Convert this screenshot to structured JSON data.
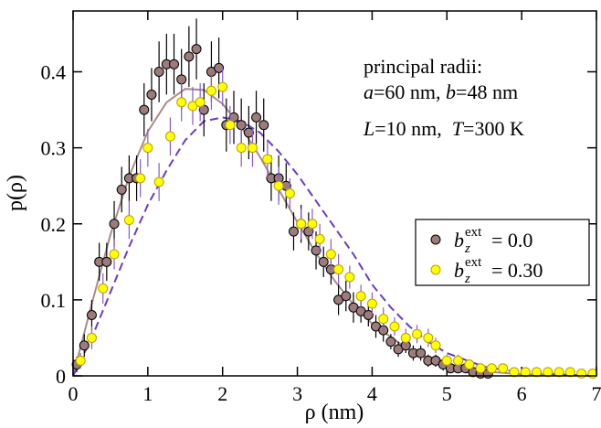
{
  "chart_data": {
    "type": "scatter",
    "x_label": "ρ (nm)",
    "y_label": "p(ρ)",
    "xlim": [
      0,
      7
    ],
    "ylim": [
      0,
      0.48
    ],
    "xticks": [
      0,
      1,
      2,
      3,
      4,
      5,
      6,
      7
    ],
    "yticks": [
      0,
      0.1,
      0.2,
      0.3,
      0.4
    ],
    "annotations": [
      [
        {
          "text": "principal radii:"
        }
      ],
      [
        {
          "text": "a",
          "italic": true
        },
        {
          "text": "=60 nm, "
        },
        {
          "text": "b",
          "italic": true
        },
        {
          "text": "=48 nm"
        }
      ],
      [
        {
          "text": "L",
          "italic": true
        },
        {
          "text": "=10 nm,  "
        },
        {
          "text": "T",
          "italic": true
        },
        {
          "text": "=300 K"
        }
      ]
    ],
    "series": [
      {
        "name": {
          "base": "b",
          "sub": "z",
          "sup": "ext",
          "rest": "= 0.0"
        },
        "color": "#9c7b7b",
        "edge": "#000000",
        "error_color": "#000000",
        "x": [
          0.05,
          0.15,
          0.25,
          0.35,
          0.45,
          0.55,
          0.65,
          0.75,
          0.85,
          0.95,
          1.05,
          1.15,
          1.25,
          1.35,
          1.45,
          1.55,
          1.65,
          1.75,
          1.85,
          1.95,
          2.05,
          2.15,
          2.25,
          2.35,
          2.45,
          2.55,
          2.65,
          2.75,
          2.85,
          2.95,
          3.05,
          3.15,
          3.25,
          3.35,
          3.45,
          3.55,
          3.65,
          3.75,
          3.85,
          3.95,
          4.05,
          4.15,
          4.25,
          4.35,
          4.45,
          4.55,
          4.65,
          4.75,
          4.85,
          4.95,
          5.05,
          5.15,
          5.25,
          5.35,
          5.45,
          5.55
        ],
        "values": [
          0.015,
          0.04,
          0.08,
          0.15,
          0.15,
          0.2,
          0.245,
          0.26,
          0.26,
          0.35,
          0.37,
          0.4,
          0.41,
          0.41,
          0.39,
          0.42,
          0.43,
          0.35,
          0.4,
          0.405,
          0.33,
          0.34,
          0.33,
          0.32,
          0.34,
          0.33,
          0.26,
          0.26,
          0.25,
          0.19,
          0.2,
          0.19,
          0.165,
          0.15,
          0.14,
          0.1,
          0.105,
          0.09,
          0.085,
          0.08,
          0.065,
          0.06,
          0.045,
          0.035,
          0.04,
          0.03,
          0.03,
          0.02,
          0.02,
          0.015,
          0.01,
          0.01,
          0.01,
          0.005,
          0.003,
          0.003
        ],
        "errors": [
          0.01,
          0.015,
          0.02,
          0.025,
          0.025,
          0.03,
          0.03,
          0.03,
          0.03,
          0.035,
          0.035,
          0.04,
          0.04,
          0.04,
          0.04,
          0.04,
          0.04,
          0.035,
          0.04,
          0.04,
          0.035,
          0.035,
          0.035,
          0.035,
          0.035,
          0.035,
          0.03,
          0.03,
          0.03,
          0.025,
          0.025,
          0.025,
          0.025,
          0.02,
          0.02,
          0.02,
          0.02,
          0.02,
          0.015,
          0.015,
          0.015,
          0.015,
          0.01,
          0.01,
          0.01,
          0.01,
          0.01,
          0.008,
          0.008,
          0.008,
          0.005,
          0.005,
          0.005,
          0.004,
          0.003,
          0.003
        ]
      },
      {
        "name": {
          "base": "b",
          "sub": "z",
          "sup": "ext",
          "rest": "= 0.30"
        },
        "color": "#ffff00",
        "edge": "#b8a000",
        "error_color": "#8a5ad0",
        "x": [
          0.1,
          0.25,
          0.4,
          0.55,
          0.75,
          0.9,
          1.0,
          1.15,
          1.3,
          1.45,
          1.6,
          1.7,
          1.85,
          2.0,
          2.1,
          2.25,
          2.4,
          2.6,
          2.75,
          2.9,
          3.05,
          3.2,
          3.3,
          3.45,
          3.55,
          3.7,
          3.85,
          4.0,
          4.15,
          4.3,
          4.45,
          4.6,
          4.75,
          4.85,
          5.0,
          5.15,
          5.3,
          5.45,
          5.6,
          5.75,
          5.9,
          6.05,
          6.2,
          6.35,
          6.5,
          6.65,
          6.8,
          6.95
        ],
        "values": [
          0.02,
          0.05,
          0.115,
          0.16,
          0.205,
          0.26,
          0.3,
          0.255,
          0.315,
          0.36,
          0.355,
          0.36,
          0.375,
          0.38,
          0.33,
          0.3,
          0.3,
          0.285,
          0.25,
          0.24,
          0.2,
          0.2,
          0.18,
          0.16,
          0.14,
          0.13,
          0.105,
          0.095,
          0.075,
          0.065,
          0.05,
          0.055,
          0.05,
          0.04,
          0.02,
          0.02,
          0.015,
          0.01,
          0.01,
          0.01,
          0.005,
          0.005,
          0.005,
          0.005,
          0.005,
          0.005,
          0.003,
          0.003
        ],
        "errors": [
          0.01,
          0.015,
          0.02,
          0.02,
          0.025,
          0.025,
          0.025,
          0.025,
          0.025,
          0.025,
          0.025,
          0.025,
          0.025,
          0.025,
          0.025,
          0.025,
          0.025,
          0.025,
          0.025,
          0.02,
          0.02,
          0.02,
          0.02,
          0.02,
          0.02,
          0.015,
          0.015,
          0.015,
          0.015,
          0.012,
          0.012,
          0.012,
          0.012,
          0.01,
          0.008,
          0.008,
          0.006,
          0.005,
          0.005,
          0.005,
          0.004,
          0.004,
          0.004,
          0.004,
          0.004,
          0.004,
          0.003,
          0.003
        ]
      }
    ],
    "curves": [
      {
        "color": "#a88c8c",
        "dash": false,
        "x": [
          0,
          0.25,
          0.5,
          0.75,
          1,
          1.25,
          1.5,
          1.75,
          2,
          2.25,
          2.5,
          2.75,
          3,
          3.25,
          3.5,
          3.75,
          4,
          4.5,
          5,
          5.5,
          6,
          7
        ],
        "values": [
          0,
          0.0946,
          0.1858,
          0.2625,
          0.3214,
          0.3598,
          0.3775,
          0.3761,
          0.3578,
          0.3271,
          0.288,
          0.2452,
          0.2021,
          0.1614,
          0.1249,
          0.0939,
          0.0686,
          0.0337,
          0.0148,
          0.0058,
          0.0021,
          0.0002
        ]
      },
      {
        "color": "#6a3ac8",
        "dash": true,
        "x": [
          0,
          0.25,
          0.5,
          0.75,
          1,
          1.25,
          1.5,
          1.75,
          2,
          2.25,
          2.5,
          2.75,
          3,
          3.25,
          3.5,
          3.75,
          4,
          4.25,
          4.5,
          4.75,
          5,
          5.5,
          6,
          7
        ],
        "values": [
          0,
          0.05,
          0.11,
          0.17,
          0.225,
          0.27,
          0.31,
          0.335,
          0.34,
          0.335,
          0.32,
          0.295,
          0.265,
          0.23,
          0.195,
          0.16,
          0.12,
          0.09,
          0.065,
          0.045,
          0.03,
          0.012,
          0.004,
          0
        ]
      }
    ]
  }
}
